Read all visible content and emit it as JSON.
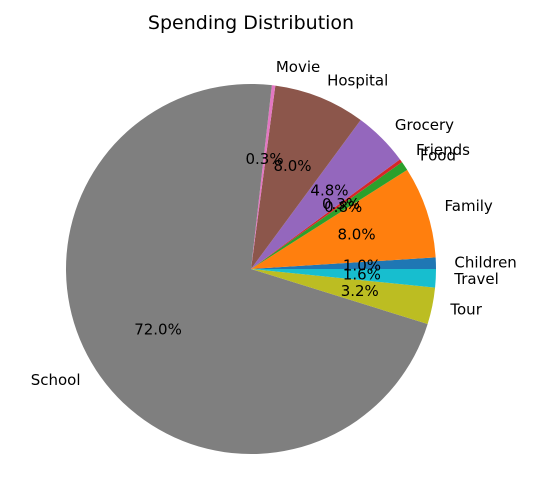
{
  "chart_data": {
    "type": "pie",
    "title": "Spending Distribution",
    "start_angle_deg": 0,
    "direction": "counterclockwise",
    "slices": [
      {
        "label": "Children",
        "value": 1.0,
        "pct_label": "1.0%",
        "color": "#1f77b4"
      },
      {
        "label": "Family",
        "value": 8.0,
        "pct_label": "8.0%",
        "color": "#ff7f0e"
      },
      {
        "label": "Food",
        "value": 0.8,
        "pct_label": "0.8%",
        "color": "#2ca02c"
      },
      {
        "label": "Friends",
        "value": 0.3,
        "pct_label": "0.3%",
        "color": "#d62728"
      },
      {
        "label": "Grocery",
        "value": 4.8,
        "pct_label": "4.8%",
        "color": "#9467bd"
      },
      {
        "label": "Hospital",
        "value": 8.0,
        "pct_label": "8.0%",
        "color": "#8c564b"
      },
      {
        "label": "Movie",
        "value": 0.3,
        "pct_label": "0.3%",
        "color": "#e377c2"
      },
      {
        "label": "School",
        "value": 72.0,
        "pct_label": "72.0%",
        "color": "#7f7f7f"
      },
      {
        "label": "Tour",
        "value": 3.2,
        "pct_label": "3.2%",
        "color": "#bcbd22"
      },
      {
        "label": "Travel",
        "value": 1.6,
        "pct_label": "1.6%",
        "color": "#17becf"
      }
    ]
  }
}
